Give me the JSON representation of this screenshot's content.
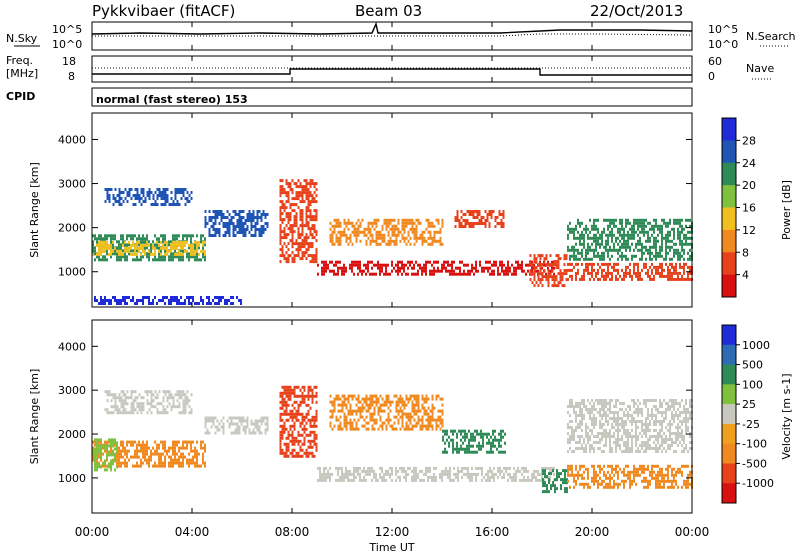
{
  "header": {
    "station": "Pykkvibaer (fitACF)",
    "beam": "Beam 03",
    "date": "22/Oct/2013"
  },
  "top_panels": {
    "nsky_label": "N.Sky",
    "nsky_ticks": [
      "10^5",
      "10^0"
    ],
    "nsearch_label": "N.Search",
    "nsearch_ticks": [
      "10^5",
      "10^0"
    ],
    "freq_label_line1": "Freq.",
    "freq_label_line2": "[MHz]",
    "freq_ticks": [
      "18",
      "8"
    ],
    "nave_label": "Nave",
    "nave_ticks": [
      "60",
      "0"
    ],
    "cpid_label": "CPID",
    "cpid_text": "normal (fast stereo) 153"
  },
  "chart_data": [
    {
      "type": "heatmap",
      "name": "power-panel",
      "ylabel": "Slant Range [km]",
      "ylim": [
        200,
        4600
      ],
      "yticks": [
        "1000",
        "2000",
        "3000",
        "4000"
      ],
      "xlim": [
        0,
        24
      ],
      "colorbar": {
        "label": "Power [dB]",
        "ticks": [
          "4",
          "8",
          "12",
          "16",
          "20",
          "24",
          "28"
        ],
        "colors": [
          "#1f2ad8",
          "#1f55b5",
          "#2e8b57",
          "#7fc03f",
          "#f0c020",
          "#f08a20",
          "#e8421c",
          "#d81010"
        ]
      },
      "bands": [
        {
          "t0": 0.0,
          "t1": 4.5,
          "r0": 1250,
          "r1": 1850,
          "color": "#2e8b57"
        },
        {
          "t0": 0.0,
          "t1": 4.5,
          "r0": 1400,
          "r1": 1700,
          "color": "#f0c020"
        },
        {
          "t0": 0.5,
          "t1": 4.0,
          "r0": 2500,
          "r1": 2900,
          "color": "#1f55b5"
        },
        {
          "t0": 4.5,
          "t1": 7.0,
          "r0": 1800,
          "r1": 2400,
          "color": "#1f55b5"
        },
        {
          "t0": 7.5,
          "t1": 9.0,
          "r0": 1200,
          "r1": 3100,
          "color": "#e8421c"
        },
        {
          "t0": 9.0,
          "t1": 18.5,
          "r0": 950,
          "r1": 1250,
          "color": "#d81010"
        },
        {
          "t0": 9.5,
          "t1": 14.0,
          "r0": 1600,
          "r1": 2200,
          "color": "#f08a20"
        },
        {
          "t0": 14.5,
          "t1": 16.5,
          "r0": 2000,
          "r1": 2400,
          "color": "#e8421c"
        },
        {
          "t0": 17.5,
          "t1": 19.0,
          "r0": 700,
          "r1": 1400,
          "color": "#e8421c"
        },
        {
          "t0": 19.0,
          "t1": 24.0,
          "r0": 800,
          "r1": 1200,
          "color": "#e8421c"
        },
        {
          "t0": 19.0,
          "t1": 24.0,
          "r0": 1300,
          "r1": 2200,
          "color": "#2e8b57"
        },
        {
          "t0": 0.0,
          "t1": 6.0,
          "r0": 250,
          "r1": 450,
          "color": "#1f2ad8"
        }
      ]
    },
    {
      "type": "heatmap",
      "name": "velocity-panel",
      "ylabel": "Slant Range [km]",
      "ylim": [
        200,
        4600
      ],
      "yticks": [
        "1000",
        "2000",
        "3000",
        "4000"
      ],
      "xlim": [
        0,
        24
      ],
      "xticks": [
        "00:00",
        "04:00",
        "08:00",
        "12:00",
        "16:00",
        "20:00",
        "00:00"
      ],
      "xlabel": "Time UT",
      "colorbar": {
        "label": "Velocity [m s-1]",
        "ticks": [
          "1000",
          "500",
          "100",
          "25",
          "-25",
          "-100",
          "-500",
          "-1000"
        ],
        "colors": [
          "#1f2ad8",
          "#2e6bb5",
          "#2e8b57",
          "#7fc03f",
          "#c8c8c0",
          "#f0a020",
          "#f08a20",
          "#e8421c",
          "#d81010"
        ]
      },
      "bands": [
        {
          "t0": 0.0,
          "t1": 4.5,
          "r0": 1250,
          "r1": 1850,
          "color": "#f08a20"
        },
        {
          "t0": 0.0,
          "t1": 1.0,
          "r0": 1200,
          "r1": 1900,
          "color": "#7fc03f"
        },
        {
          "t0": 0.5,
          "t1": 4.0,
          "r0": 2500,
          "r1": 3000,
          "color": "#c8c8c0"
        },
        {
          "t0": 4.5,
          "t1": 7.0,
          "r0": 2000,
          "r1": 2400,
          "color": "#c8c8c0"
        },
        {
          "t0": 7.5,
          "t1": 9.0,
          "r0": 1500,
          "r1": 3100,
          "color": "#e8421c"
        },
        {
          "t0": 9.0,
          "t1": 18.5,
          "r0": 950,
          "r1": 1250,
          "color": "#c8c8c0"
        },
        {
          "t0": 9.5,
          "t1": 14.0,
          "r0": 2100,
          "r1": 2900,
          "color": "#f08a20"
        },
        {
          "t0": 14.0,
          "t1": 16.5,
          "r0": 1600,
          "r1": 2100,
          "color": "#2e8b57"
        },
        {
          "t0": 18.0,
          "t1": 19.0,
          "r0": 700,
          "r1": 1200,
          "color": "#2e8b57"
        },
        {
          "t0": 19.0,
          "t1": 24.0,
          "r0": 800,
          "r1": 1300,
          "color": "#f08a20"
        },
        {
          "t0": 19.0,
          "t1": 24.0,
          "r0": 1600,
          "r1": 2800,
          "color": "#c8c8c0"
        }
      ]
    }
  ]
}
